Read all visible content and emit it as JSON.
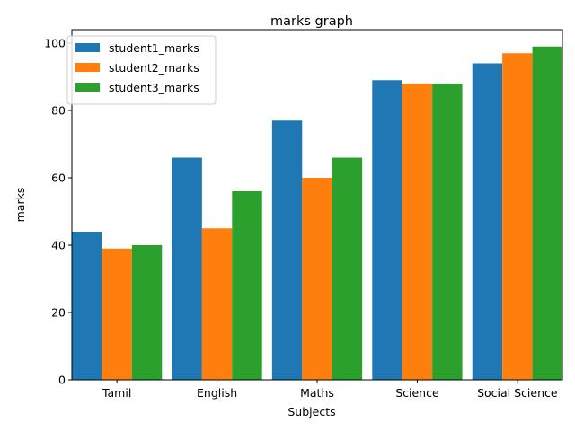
{
  "chart_data": {
    "type": "bar",
    "title": "marks graph",
    "xlabel": "Subjects",
    "ylabel": "marks",
    "categories": [
      "Tamil",
      "English",
      "Maths",
      "Science",
      "Social Science"
    ],
    "series": [
      {
        "name": "student1_marks",
        "color": "#1f77b4",
        "values": [
          44,
          66,
          77,
          89,
          94
        ]
      },
      {
        "name": "student2_marks",
        "color": "#ff7f0e",
        "values": [
          39,
          45,
          60,
          88,
          97
        ]
      },
      {
        "name": "student3_marks",
        "color": "#2ca02c",
        "values": [
          40,
          56,
          66,
          88,
          99
        ]
      }
    ],
    "ylim": [
      0,
      104
    ],
    "yticks": [
      0,
      20,
      40,
      60,
      80,
      100
    ],
    "grid": false,
    "legend_position": "top-left"
  }
}
